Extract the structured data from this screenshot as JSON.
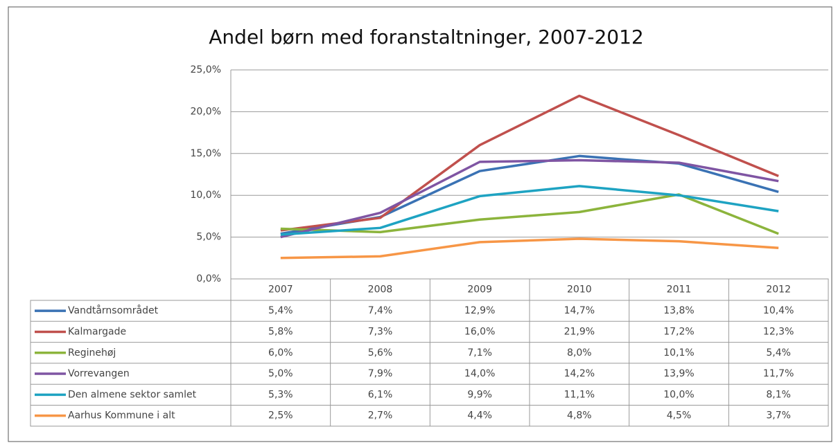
{
  "chart_data": {
    "type": "line",
    "title": "Andel børn med foranstaltninger, 2007-2012",
    "categories": [
      "2007",
      "2008",
      "2009",
      "2010",
      "2011",
      "2012"
    ],
    "ylim": [
      0,
      25
    ],
    "yticks": [
      {
        "value": 0,
        "label": "0,0%"
      },
      {
        "value": 5,
        "label": "5,0%"
      },
      {
        "value": 10,
        "label": "10,0%"
      },
      {
        "value": 15,
        "label": "15,0%"
      },
      {
        "value": 20,
        "label": "20,0%"
      },
      {
        "value": 25,
        "label": "25,0%"
      }
    ],
    "grid": true,
    "series": [
      {
        "name": "Vandtårnsområdet",
        "color": "#3a72b4",
        "values": [
          5.4,
          7.4,
          12.9,
          14.7,
          13.8,
          10.4
        ],
        "value_labels": [
          "5,4%",
          "7,4%",
          "12,9%",
          "14,7%",
          "13,8%",
          "10,4%"
        ]
      },
      {
        "name": "Kalmargade",
        "color": "#c0504d",
        "values": [
          5.8,
          7.3,
          16.0,
          21.9,
          17.2,
          12.3
        ],
        "value_labels": [
          "5,8%",
          "7,3%",
          "16,0%",
          "21,9%",
          "17,2%",
          "12,3%"
        ]
      },
      {
        "name": "Reginehøj",
        "color": "#8cb43c",
        "values": [
          6.0,
          5.6,
          7.1,
          8.0,
          10.1,
          5.4
        ],
        "value_labels": [
          "6,0%",
          "5,6%",
          "7,1%",
          "8,0%",
          "10,1%",
          "5,4%"
        ]
      },
      {
        "name": "Vorrevangen",
        "color": "#7f55a3",
        "values": [
          5.0,
          7.9,
          14.0,
          14.2,
          13.9,
          11.7
        ],
        "value_labels": [
          "5,0%",
          "7,9%",
          "14,0%",
          "14,2%",
          "13,9%",
          "11,7%"
        ]
      },
      {
        "name": "Den almene sektor samlet",
        "color": "#1ea3c2",
        "values": [
          5.3,
          6.1,
          9.9,
          11.1,
          10.0,
          8.1
        ],
        "value_labels": [
          "5,3%",
          "6,1%",
          "9,9%",
          "11,1%",
          "10,0%",
          "8,1%"
        ]
      },
      {
        "name": "Aarhus Kommune i alt",
        "color": "#f79646",
        "values": [
          2.5,
          2.7,
          4.4,
          4.8,
          4.5,
          3.7
        ],
        "value_labels": [
          "2,5%",
          "2,7%",
          "4,4%",
          "4,8%",
          "4,5%",
          "3,7%"
        ]
      }
    ]
  }
}
